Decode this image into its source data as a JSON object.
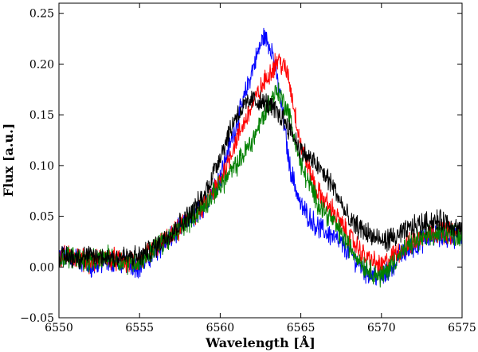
{
  "chart_data": {
    "type": "line",
    "title": "",
    "xlabel": "Wavelength [Å]",
    "ylabel": "Flux [a.u.]",
    "xlim": [
      6550,
      6575
    ],
    "ylim": [
      -0.05,
      0.26
    ],
    "xticks": [
      6550,
      6555,
      6560,
      6565,
      6570,
      6575
    ],
    "xtick_labels": [
      "6550",
      "6555",
      "6560",
      "6565",
      "6570",
      "6575"
    ],
    "yticks": [
      -0.05,
      0.0,
      0.05,
      0.1,
      0.15,
      0.2,
      0.25
    ],
    "ytick_labels": [
      "−0.05",
      "0.00",
      "0.05",
      "0.10",
      "0.15",
      "0.20",
      "0.25"
    ],
    "grid": false,
    "legend": "none",
    "series": [
      {
        "color": "#0000ff",
        "x": [
          6550,
          6551,
          6552,
          6553,
          6554,
          6555,
          6556,
          6557,
          6558,
          6559,
          6560,
          6561,
          6562,
          6562.7,
          6563.2,
          6563.7,
          6564.3,
          6565,
          6566,
          6567,
          6568,
          6569,
          6570,
          6570.5,
          6571,
          6572,
          6573,
          6574,
          6575
        ],
        "y": [
          0.01,
          0.01,
          0.0,
          0.005,
          0.005,
          0.0,
          0.015,
          0.03,
          0.045,
          0.06,
          0.09,
          0.14,
          0.195,
          0.228,
          0.215,
          0.17,
          0.1,
          0.06,
          0.04,
          0.03,
          0.015,
          -0.005,
          -0.01,
          -0.005,
          0.01,
          0.02,
          0.03,
          0.03,
          0.03
        ]
      },
      {
        "color": "#ff0000",
        "x": [
          6550,
          6551,
          6552,
          6553,
          6554,
          6555,
          6556,
          6557,
          6558,
          6559,
          6560,
          6561,
          6562,
          6563,
          6563.6,
          6564.2,
          6565,
          6566,
          6567,
          6568,
          6569,
          6570,
          6571,
          6572,
          6573,
          6574,
          6575
        ],
        "y": [
          0.01,
          0.01,
          0.005,
          0.01,
          0.005,
          0.005,
          0.02,
          0.03,
          0.045,
          0.06,
          0.085,
          0.125,
          0.16,
          0.19,
          0.205,
          0.19,
          0.12,
          0.075,
          0.055,
          0.03,
          0.01,
          0.0,
          0.015,
          0.025,
          0.035,
          0.035,
          0.03
        ]
      },
      {
        "color": "#008000",
        "x": [
          6550,
          6551,
          6552,
          6553,
          6554,
          6555,
          6556,
          6557,
          6558,
          6559,
          6560,
          6561,
          6562,
          6563,
          6563.5,
          6564.2,
          6565,
          6566,
          6567,
          6568,
          6569,
          6570,
          6571,
          6572,
          6573,
          6574,
          6575
        ],
        "y": [
          0.01,
          0.01,
          0.005,
          0.01,
          0.005,
          0.005,
          0.02,
          0.03,
          0.045,
          0.06,
          0.08,
          0.1,
          0.125,
          0.16,
          0.175,
          0.155,
          0.1,
          0.065,
          0.045,
          0.02,
          0.0,
          -0.01,
          0.01,
          0.025,
          0.03,
          0.035,
          0.03
        ]
      },
      {
        "color": "#000000",
        "x": [
          6550,
          6551,
          6552,
          6553,
          6554,
          6555,
          6556,
          6557,
          6558,
          6559,
          6560,
          6561,
          6562,
          6563,
          6564,
          6565,
          6566,
          6567,
          6568,
          6569,
          6570,
          6571,
          6572,
          6573,
          6574,
          6575
        ],
        "y": [
          0.01,
          0.01,
          0.01,
          0.01,
          0.01,
          0.01,
          0.02,
          0.035,
          0.05,
          0.07,
          0.11,
          0.15,
          0.165,
          0.16,
          0.145,
          0.115,
          0.1,
          0.08,
          0.045,
          0.035,
          0.025,
          0.03,
          0.04,
          0.045,
          0.045,
          0.035
        ]
      }
    ]
  }
}
